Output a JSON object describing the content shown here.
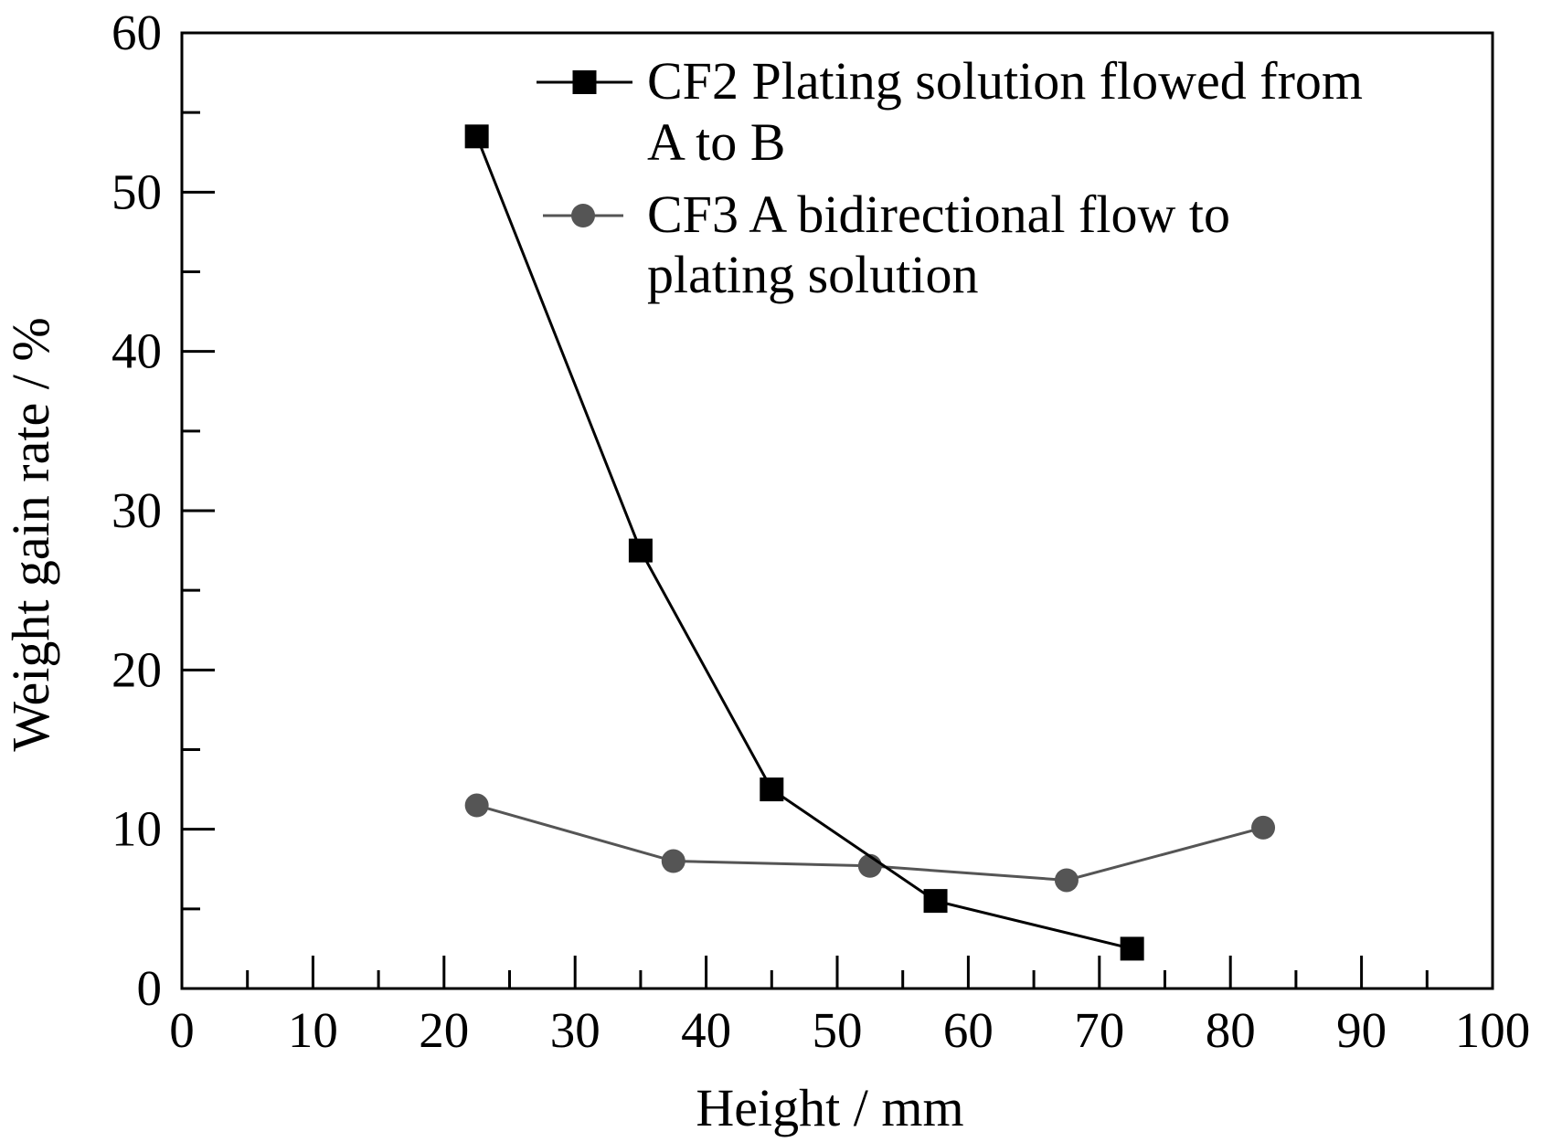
{
  "chart_data": {
    "type": "line",
    "title": "",
    "xlabel": "Height / mm",
    "ylabel": "Weight gain rate / %",
    "xlim": [
      0,
      100
    ],
    "ylim": [
      0,
      60
    ],
    "x_ticks": [
      0,
      10,
      20,
      30,
      40,
      50,
      60,
      70,
      80,
      90,
      100
    ],
    "x_tick_labels": [
      "0",
      "10",
      "20",
      "30",
      "40",
      "50",
      "60",
      "70",
      "80",
      "90",
      "100"
    ],
    "y_ticks": [
      0,
      10,
      20,
      30,
      40,
      50,
      60
    ],
    "y_tick_labels": [
      "0",
      "10",
      "20",
      "30",
      "40",
      "50",
      "60"
    ],
    "grid": false,
    "legend_position": "top-right",
    "series": [
      {
        "name": "CF2 Plating solution flowed from A to B",
        "legend_lines": [
          "CF2 Plating solution flowed from",
          "A to B"
        ],
        "marker": "square",
        "color": "#000000",
        "x": [
          22.5,
          35,
          45,
          57.5,
          72.5
        ],
        "y": [
          53.5,
          27.5,
          12.5,
          5.5,
          2.5
        ]
      },
      {
        "name": "CF3 A bidirectional flow to plating solution",
        "legend_lines": [
          "CF3 A bidirectional flow to",
          "plating solution"
        ],
        "marker": "circle",
        "color": "#555555",
        "x": [
          22.5,
          37.5,
          52.5,
          67.5,
          82.5
        ],
        "y": [
          11.5,
          8,
          7.7,
          6.8,
          10.1
        ]
      }
    ]
  }
}
